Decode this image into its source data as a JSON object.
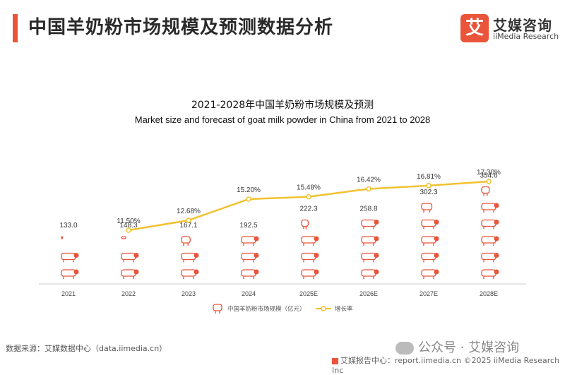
{
  "page_title": "中国羊奶粉市场规模及预测数据分析",
  "logo": {
    "mark": "艾",
    "name_cn": "艾媒咨询",
    "name_en": "iiMedia Research"
  },
  "source": "数据来源：艾媒数据中心（data.iimedia.cn）",
  "watermark": "公众号 · 艾媒咨询",
  "footer": "艾媒报告中心：report.iimedia.cn    ©2025  iiMedia Research  Inc",
  "colors": {
    "accent": "#e9543a",
    "line": "#f2c12e",
    "icon": "#e9543a"
  },
  "chart_data": {
    "type": "bar",
    "title": "2021-2028年中国羊奶粉市场规模及预测",
    "subtitle": "Market size and forecast of goat milk powder in China from 2021 to 2028",
    "categories": [
      "2021",
      "2022",
      "2023",
      "2024",
      "2025E",
      "2026E",
      "2027E",
      "2028E"
    ],
    "series": [
      {
        "name": "中国羊奶粉市场规模（亿元）",
        "type": "bar",
        "values": [
          133.0,
          148.3,
          167.1,
          192.5,
          222.3,
          258.8,
          302.3,
          354.6
        ],
        "labels": [
          "133.0",
          "148.3",
          "167.1",
          "192.5",
          "222.3",
          "258.8",
          "302.3",
          "354.6"
        ]
      },
      {
        "name": "增长率",
        "type": "line",
        "values": [
          null,
          11.5,
          12.68,
          15.2,
          15.48,
          16.42,
          16.81,
          17.3
        ],
        "labels": [
          "",
          "11.50%",
          "12.68%",
          "15.20%",
          "15.48%",
          "16.42%",
          "16.81%",
          "17.30%"
        ]
      }
    ],
    "legend_position": "bottom",
    "grid": false
  }
}
